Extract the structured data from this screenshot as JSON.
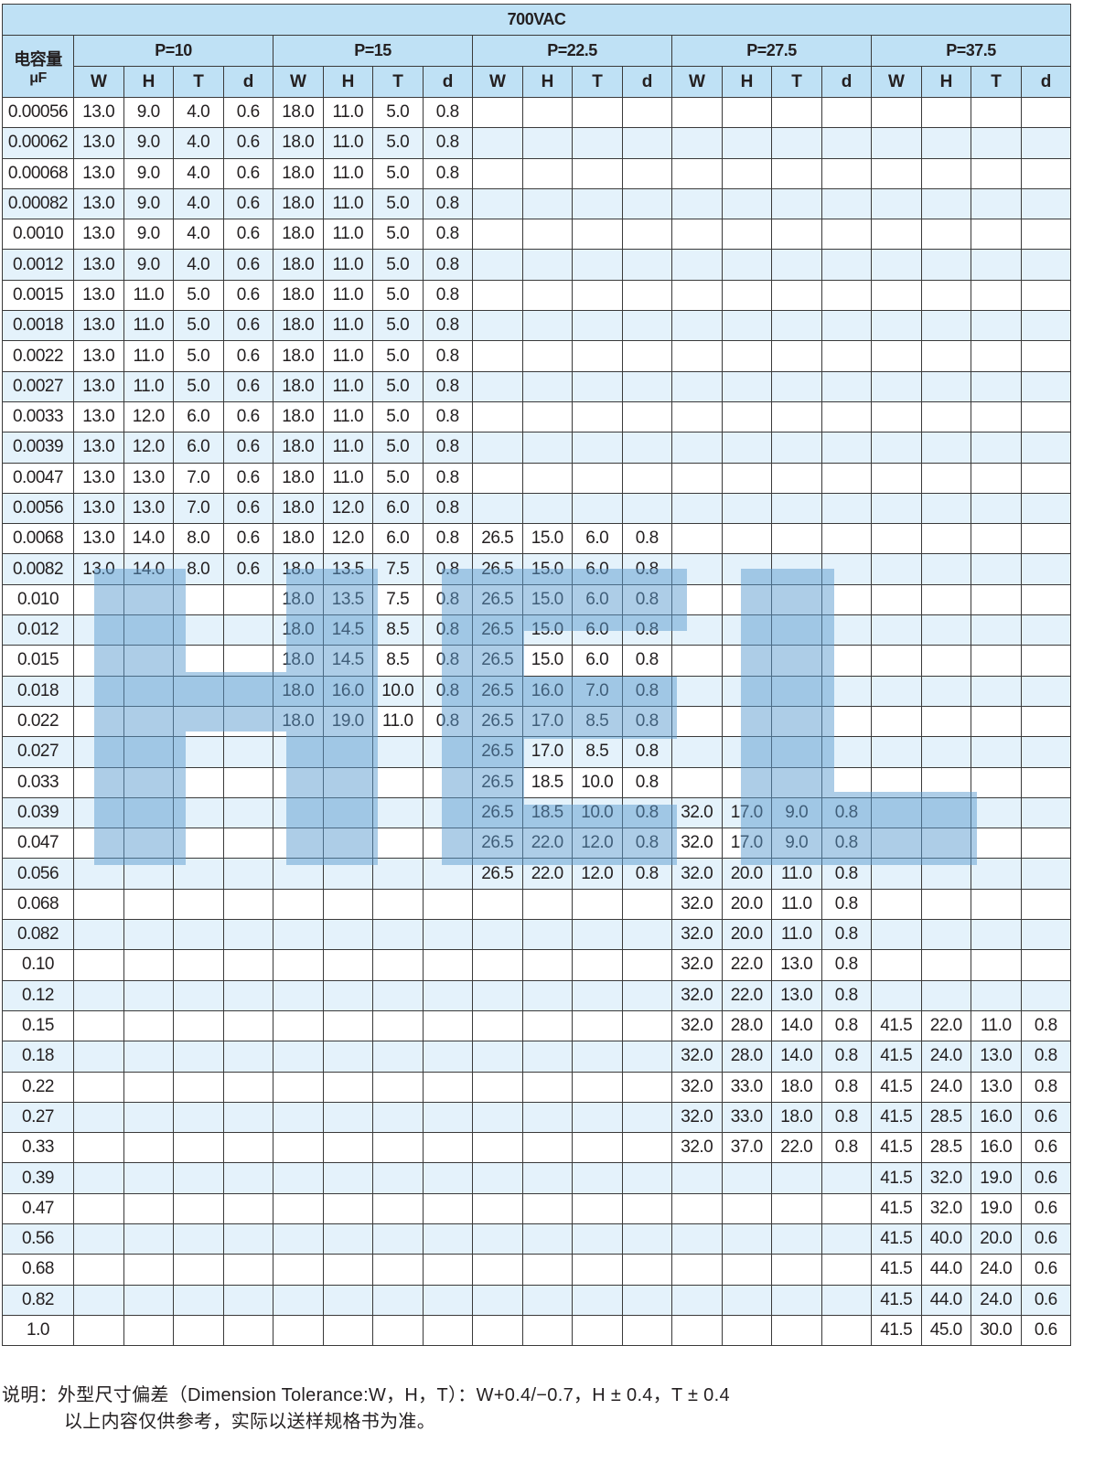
{
  "title": "700VAC",
  "capacitance_header": {
    "line1": "电容量",
    "line2": "μF"
  },
  "pitch_groups": [
    "P=10",
    "P=15",
    "P=22.5",
    "P=27.5",
    "P=37.5"
  ],
  "sub_columns": [
    "W",
    "H",
    "T",
    "d"
  ],
  "watermark_logo": "HEL",
  "colors": {
    "header_bg": "#bfe1f5",
    "alt_row_bg": "#e4f2fb",
    "watermark": "#5b9bd0"
  },
  "rows": [
    {
      "cap": "0.00056",
      "cells": [
        "13.0",
        "9.0",
        "4.0",
        "0.6",
        "18.0",
        "11.0",
        "5.0",
        "0.8",
        "",
        "",
        "",
        "",
        "",
        "",
        "",
        "",
        "",
        "",
        "",
        ""
      ]
    },
    {
      "cap": "0.00062",
      "cells": [
        "13.0",
        "9.0",
        "4.0",
        "0.6",
        "18.0",
        "11.0",
        "5.0",
        "0.8",
        "",
        "",
        "",
        "",
        "",
        "",
        "",
        "",
        "",
        "",
        "",
        ""
      ]
    },
    {
      "cap": "0.00068",
      "cells": [
        "13.0",
        "9.0",
        "4.0",
        "0.6",
        "18.0",
        "11.0",
        "5.0",
        "0.8",
        "",
        "",
        "",
        "",
        "",
        "",
        "",
        "",
        "",
        "",
        "",
        ""
      ]
    },
    {
      "cap": "0.00082",
      "cells": [
        "13.0",
        "9.0",
        "4.0",
        "0.6",
        "18.0",
        "11.0",
        "5.0",
        "0.8",
        "",
        "",
        "",
        "",
        "",
        "",
        "",
        "",
        "",
        "",
        "",
        ""
      ]
    },
    {
      "cap": "0.0010",
      "cells": [
        "13.0",
        "9.0",
        "4.0",
        "0.6",
        "18.0",
        "11.0",
        "5.0",
        "0.8",
        "",
        "",
        "",
        "",
        "",
        "",
        "",
        "",
        "",
        "",
        "",
        ""
      ]
    },
    {
      "cap": "0.0012",
      "cells": [
        "13.0",
        "9.0",
        "4.0",
        "0.6",
        "18.0",
        "11.0",
        "5.0",
        "0.8",
        "",
        "",
        "",
        "",
        "",
        "",
        "",
        "",
        "",
        "",
        "",
        ""
      ]
    },
    {
      "cap": "0.0015",
      "cells": [
        "13.0",
        "11.0",
        "5.0",
        "0.6",
        "18.0",
        "11.0",
        "5.0",
        "0.8",
        "",
        "",
        "",
        "",
        "",
        "",
        "",
        "",
        "",
        "",
        "",
        ""
      ]
    },
    {
      "cap": "0.0018",
      "cells": [
        "13.0",
        "11.0",
        "5.0",
        "0.6",
        "18.0",
        "11.0",
        "5.0",
        "0.8",
        "",
        "",
        "",
        "",
        "",
        "",
        "",
        "",
        "",
        "",
        "",
        ""
      ]
    },
    {
      "cap": "0.0022",
      "cells": [
        "13.0",
        "11.0",
        "5.0",
        "0.6",
        "18.0",
        "11.0",
        "5.0",
        "0.8",
        "",
        "",
        "",
        "",
        "",
        "",
        "",
        "",
        "",
        "",
        "",
        ""
      ]
    },
    {
      "cap": "0.0027",
      "cells": [
        "13.0",
        "11.0",
        "5.0",
        "0.6",
        "18.0",
        "11.0",
        "5.0",
        "0.8",
        "",
        "",
        "",
        "",
        "",
        "",
        "",
        "",
        "",
        "",
        "",
        ""
      ]
    },
    {
      "cap": "0.0033",
      "cells": [
        "13.0",
        "12.0",
        "6.0",
        "0.6",
        "18.0",
        "11.0",
        "5.0",
        "0.8",
        "",
        "",
        "",
        "",
        "",
        "",
        "",
        "",
        "",
        "",
        "",
        ""
      ]
    },
    {
      "cap": "0.0039",
      "cells": [
        "13.0",
        "12.0",
        "6.0",
        "0.6",
        "18.0",
        "11.0",
        "5.0",
        "0.8",
        "",
        "",
        "",
        "",
        "",
        "",
        "",
        "",
        "",
        "",
        "",
        ""
      ]
    },
    {
      "cap": "0.0047",
      "cells": [
        "13.0",
        "13.0",
        "7.0",
        "0.6",
        "18.0",
        "11.0",
        "5.0",
        "0.8",
        "",
        "",
        "",
        "",
        "",
        "",
        "",
        "",
        "",
        "",
        "",
        ""
      ]
    },
    {
      "cap": "0.0056",
      "cells": [
        "13.0",
        "13.0",
        "7.0",
        "0.6",
        "18.0",
        "12.0",
        "6.0",
        "0.8",
        "",
        "",
        "",
        "",
        "",
        "",
        "",
        "",
        "",
        "",
        "",
        ""
      ]
    },
    {
      "cap": "0.0068",
      "cells": [
        "13.0",
        "14.0",
        "8.0",
        "0.6",
        "18.0",
        "12.0",
        "6.0",
        "0.8",
        "26.5",
        "15.0",
        "6.0",
        "0.8",
        "",
        "",
        "",
        "",
        "",
        "",
        "",
        ""
      ]
    },
    {
      "cap": "0.0082",
      "cells": [
        "13.0",
        "14.0",
        "8.0",
        "0.6",
        "18.0",
        "13.5",
        "7.5",
        "0.8",
        "26.5",
        "15.0",
        "6.0",
        "0.8",
        "",
        "",
        "",
        "",
        "",
        "",
        "",
        ""
      ]
    },
    {
      "cap": "0.010",
      "cells": [
        "",
        "",
        "",
        "",
        "18.0",
        "13.5",
        "7.5",
        "0.8",
        "26.5",
        "15.0",
        "6.0",
        "0.8",
        "",
        "",
        "",
        "",
        "",
        "",
        "",
        ""
      ]
    },
    {
      "cap": "0.012",
      "cells": [
        "",
        "",
        "",
        "",
        "18.0",
        "14.5",
        "8.5",
        "0.8",
        "26.5",
        "15.0",
        "6.0",
        "0.8",
        "",
        "",
        "",
        "",
        "",
        "",
        "",
        ""
      ]
    },
    {
      "cap": "0.015",
      "cells": [
        "",
        "",
        "",
        "",
        "18.0",
        "14.5",
        "8.5",
        "0.8",
        "26.5",
        "15.0",
        "6.0",
        "0.8",
        "",
        "",
        "",
        "",
        "",
        "",
        "",
        ""
      ]
    },
    {
      "cap": "0.018",
      "cells": [
        "",
        "",
        "",
        "",
        "18.0",
        "16.0",
        "10.0",
        "0.8",
        "26.5",
        "16.0",
        "7.0",
        "0.8",
        "",
        "",
        "",
        "",
        "",
        "",
        "",
        ""
      ]
    },
    {
      "cap": "0.022",
      "cells": [
        "",
        "",
        "",
        "",
        "18.0",
        "19.0",
        "11.0",
        "0.8",
        "26.5",
        "17.0",
        "8.5",
        "0.8",
        "",
        "",
        "",
        "",
        "",
        "",
        "",
        ""
      ]
    },
    {
      "cap": "0.027",
      "cells": [
        "",
        "",
        "",
        "",
        "",
        "",
        "",
        "",
        "26.5",
        "17.0",
        "8.5",
        "0.8",
        "",
        "",
        "",
        "",
        "",
        "",
        "",
        ""
      ]
    },
    {
      "cap": "0.033",
      "cells": [
        "",
        "",
        "",
        "",
        "",
        "",
        "",
        "",
        "26.5",
        "18.5",
        "10.0",
        "0.8",
        "",
        "",
        "",
        "",
        "",
        "",
        "",
        ""
      ]
    },
    {
      "cap": "0.039",
      "cells": [
        "",
        "",
        "",
        "",
        "",
        "",
        "",
        "",
        "26.5",
        "18.5",
        "10.0",
        "0.8",
        "32.0",
        "17.0",
        "9.0",
        "0.8",
        "",
        "",
        "",
        ""
      ]
    },
    {
      "cap": "0.047",
      "cells": [
        "",
        "",
        "",
        "",
        "",
        "",
        "",
        "",
        "26.5",
        "22.0",
        "12.0",
        "0.8",
        "32.0",
        "17.0",
        "9.0",
        "0.8",
        "",
        "",
        "",
        ""
      ]
    },
    {
      "cap": "0.056",
      "cells": [
        "",
        "",
        "",
        "",
        "",
        "",
        "",
        "",
        "26.5",
        "22.0",
        "12.0",
        "0.8",
        "32.0",
        "20.0",
        "11.0",
        "0.8",
        "",
        "",
        "",
        ""
      ]
    },
    {
      "cap": "0.068",
      "cells": [
        "",
        "",
        "",
        "",
        "",
        "",
        "",
        "",
        "",
        "",
        "",
        "",
        "32.0",
        "20.0",
        "11.0",
        "0.8",
        "",
        "",
        "",
        ""
      ]
    },
    {
      "cap": "0.082",
      "cells": [
        "",
        "",
        "",
        "",
        "",
        "",
        "",
        "",
        "",
        "",
        "",
        "",
        "32.0",
        "20.0",
        "11.0",
        "0.8",
        "",
        "",
        "",
        ""
      ]
    },
    {
      "cap": "0.10",
      "cells": [
        "",
        "",
        "",
        "",
        "",
        "",
        "",
        "",
        "",
        "",
        "",
        "",
        "32.0",
        "22.0",
        "13.0",
        "0.8",
        "",
        "",
        "",
        ""
      ]
    },
    {
      "cap": "0.12",
      "cells": [
        "",
        "",
        "",
        "",
        "",
        "",
        "",
        "",
        "",
        "",
        "",
        "",
        "32.0",
        "22.0",
        "13.0",
        "0.8",
        "",
        "",
        "",
        ""
      ]
    },
    {
      "cap": "0.15",
      "cells": [
        "",
        "",
        "",
        "",
        "",
        "",
        "",
        "",
        "",
        "",
        "",
        "",
        "32.0",
        "28.0",
        "14.0",
        "0.8",
        "41.5",
        "22.0",
        "11.0",
        "0.8"
      ]
    },
    {
      "cap": "0.18",
      "cells": [
        "",
        "",
        "",
        "",
        "",
        "",
        "",
        "",
        "",
        "",
        "",
        "",
        "32.0",
        "28.0",
        "14.0",
        "0.8",
        "41.5",
        "24.0",
        "13.0",
        "0.8"
      ]
    },
    {
      "cap": "0.22",
      "cells": [
        "",
        "",
        "",
        "",
        "",
        "",
        "",
        "",
        "",
        "",
        "",
        "",
        "32.0",
        "33.0",
        "18.0",
        "0.8",
        "41.5",
        "24.0",
        "13.0",
        "0.8"
      ]
    },
    {
      "cap": "0.27",
      "cells": [
        "",
        "",
        "",
        "",
        "",
        "",
        "",
        "",
        "",
        "",
        "",
        "",
        "32.0",
        "33.0",
        "18.0",
        "0.8",
        "41.5",
        "28.5",
        "16.0",
        "0.6"
      ]
    },
    {
      "cap": "0.33",
      "cells": [
        "",
        "",
        "",
        "",
        "",
        "",
        "",
        "",
        "",
        "",
        "",
        "",
        "32.0",
        "37.0",
        "22.0",
        "0.8",
        "41.5",
        "28.5",
        "16.0",
        "0.6"
      ]
    },
    {
      "cap": "0.39",
      "cells": [
        "",
        "",
        "",
        "",
        "",
        "",
        "",
        "",
        "",
        "",
        "",
        "",
        "",
        "",
        "",
        "",
        "41.5",
        "32.0",
        "19.0",
        "0.6"
      ]
    },
    {
      "cap": "0.47",
      "cells": [
        "",
        "",
        "",
        "",
        "",
        "",
        "",
        "",
        "",
        "",
        "",
        "",
        "",
        "",
        "",
        "",
        "41.5",
        "32.0",
        "19.0",
        "0.6"
      ]
    },
    {
      "cap": "0.56",
      "cells": [
        "",
        "",
        "",
        "",
        "",
        "",
        "",
        "",
        "",
        "",
        "",
        "",
        "",
        "",
        "",
        "",
        "41.5",
        "40.0",
        "20.0",
        "0.6"
      ]
    },
    {
      "cap": "0.68",
      "cells": [
        "",
        "",
        "",
        "",
        "",
        "",
        "",
        "",
        "",
        "",
        "",
        "",
        "",
        "",
        "",
        "",
        "41.5",
        "44.0",
        "24.0",
        "0.6"
      ]
    },
    {
      "cap": "0.82",
      "cells": [
        "",
        "",
        "",
        "",
        "",
        "",
        "",
        "",
        "",
        "",
        "",
        "",
        "",
        "",
        "",
        "",
        "41.5",
        "44.0",
        "24.0",
        "0.6"
      ]
    },
    {
      "cap": "1.0",
      "cells": [
        "",
        "",
        "",
        "",
        "",
        "",
        "",
        "",
        "",
        "",
        "",
        "",
        "",
        "",
        "",
        "",
        "41.5",
        "45.0",
        "30.0",
        "0.6"
      ]
    }
  ],
  "notes": {
    "line1": "说明：外型尺寸偏差（Dimension Tolerance:W，H，T）：W+0.4/−0.7，H ± 0.4，T ± 0.4",
    "line2": "以上内容仅供参考，实际以送样规格书为准。"
  }
}
